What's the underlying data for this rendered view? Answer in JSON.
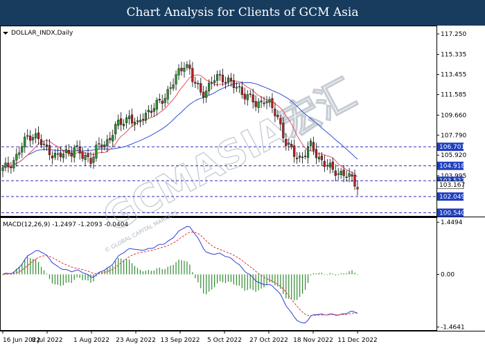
{
  "header": {
    "title": "Chart Analysis for Clients of GCM Asia"
  },
  "watermark": {
    "text": "GCMASIA宏汇",
    "subtext": "© GLOBAL CAPITAL MARKETS"
  },
  "colors": {
    "header_bg": "#173c5e",
    "bull": "#2f8f2f",
    "bear": "#b22222",
    "ma_fast": "#e0505a",
    "ma_slow": "#3050d0",
    "hline": "#2a2ab8",
    "macd_line": "#2b3ed6",
    "signal_line": "#e03030",
    "histogram": "#2e8b2e",
    "label_bg": "#1f3fbf",
    "current_bg": "#111111"
  },
  "chart_data": [
    {
      "type": "candlestick",
      "symbol_label": "DOLLAR_INDX,Daily",
      "x_tick_labels": [
        "16 Jun 2022",
        "8 Jul 2022",
        "1 Aug 2022",
        "23 Aug 2022",
        "13 Sep 2022",
        "5 Oct 2022",
        "27 Oct 2022",
        "18 Nov 2022",
        "11 Dec 2022"
      ],
      "y_tick_labels": [
        117.25,
        115.335,
        113.455,
        111.585,
        109.66,
        107.79,
        105.92,
        103.995
      ],
      "ylim": [
        100.24,
        117.9
      ],
      "horizontal_levels": [
        106.701,
        104.918,
        103.527,
        102.049,
        100.54
      ],
      "current_price": 103.167,
      "trend_closes": [
        104.5,
        104.8,
        105.3,
        105.6,
        106.3,
        107.0,
        107.8,
        107.9,
        107.6,
        107.0,
        106.6,
        106.4,
        106.0,
        105.7,
        105.9,
        106.2,
        106.3,
        106.6,
        106.1,
        105.7,
        105.8,
        105.6,
        106.3,
        106.8,
        106.9,
        107.4,
        108.1,
        108.6,
        108.9,
        109.2,
        109.7,
        109.0,
        108.5,
        109.6,
        110.0,
        110.1,
        110.4,
        110.7,
        111.3,
        111.9,
        112.4,
        113.1,
        113.8,
        114.6,
        114.2,
        112.8,
        112.3,
        111.8,
        112.0,
        112.4,
        112.9,
        113.2,
        113.3,
        113.0,
        112.6,
        112.2,
        112.1,
        111.8,
        111.4,
        111.0,
        110.5,
        110.9,
        111.3,
        110.7,
        110.0,
        109.6,
        108.5,
        107.1,
        106.4,
        106.0,
        105.7,
        105.9,
        106.3,
        106.7,
        106.2,
        105.7,
        105.2,
        104.8,
        104.4,
        104.5,
        104.3,
        104.0,
        103.8,
        103.5,
        103.2
      ],
      "series": [
        {
          "name": "",
          "role": "fast moving average"
        },
        {
          "name": "",
          "role": "slow moving average"
        }
      ]
    },
    {
      "type": "macd",
      "label": "MACD(12,26,9) -1.2497 -1.2093 -0.0404",
      "y_tick_labels": [
        "1.4494",
        "0.00",
        "-1.4641"
      ],
      "ylim": [
        -1.55,
        1.55
      ]
    }
  ]
}
